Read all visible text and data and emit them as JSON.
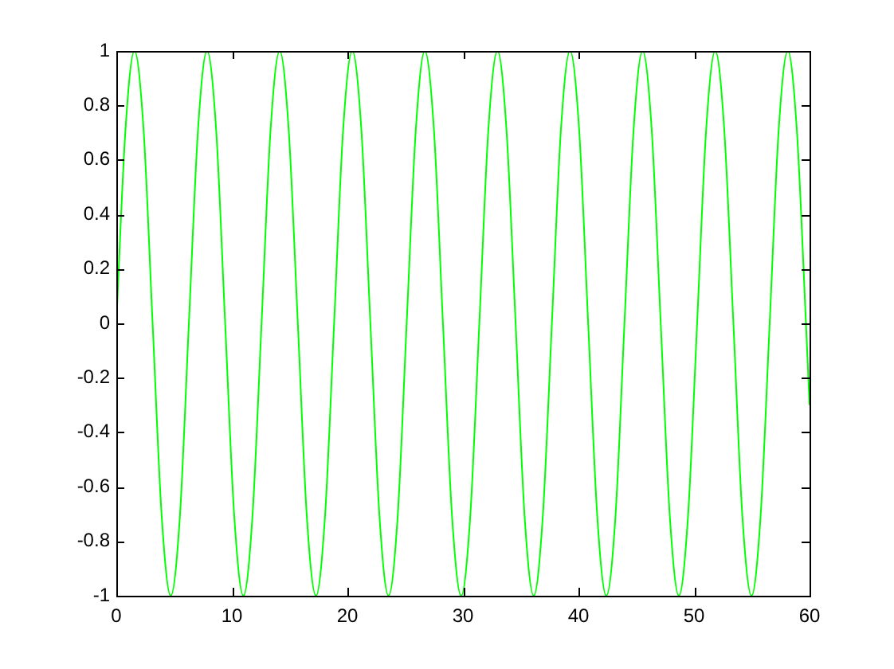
{
  "chart_data": {
    "type": "line",
    "x": [
      0,
      0.79,
      1.57,
      2.36,
      3.14,
      3.93,
      4.71,
      5.5,
      6.28,
      7.07,
      7.85,
      8.64,
      9.42,
      10.21,
      11,
      11.78,
      12.57,
      13.35,
      14.14,
      14.92,
      15.71,
      16.49,
      17.28,
      18.06,
      18.85,
      19.63,
      20.42,
      21.21,
      21.99,
      22.78,
      23.56,
      24.35,
      25.13,
      25.92,
      26.7,
      27.49,
      28.27,
      29.06,
      29.85,
      30.63,
      31.42,
      32.2,
      32.99,
      33.77,
      34.56,
      35.34,
      36.13,
      36.91,
      37.7,
      38.48,
      39.27,
      40.06,
      40.84,
      41.63,
      42.41,
      43.2,
      43.98,
      44.77,
      45.55,
      46.34,
      47.12,
      47.91,
      48.69,
      49.48,
      50.27,
      51.05,
      51.84,
      52.62,
      53.41,
      54.19,
      54.98,
      55.76,
      56.55,
      57.33,
      58.12,
      58.9,
      59.69,
      60
    ],
    "values": [
      0,
      0.71,
      1,
      0.71,
      0,
      -0.71,
      -1,
      -0.71,
      0,
      0.71,
      1,
      0.71,
      0,
      -0.71,
      -1,
      -0.71,
      0,
      0.71,
      1,
      0.71,
      0,
      -0.71,
      -1,
      -0.71,
      0,
      0.71,
      1,
      0.71,
      0,
      -0.71,
      -1,
      -0.71,
      0,
      0.71,
      1,
      0.71,
      0,
      -0.71,
      -1,
      -0.71,
      0,
      0.71,
      1,
      0.71,
      0,
      -0.71,
      -1,
      -0.71,
      0,
      0.71,
      1,
      0.71,
      0,
      -0.71,
      -1,
      -0.71,
      0,
      0.71,
      1,
      0.71,
      0,
      -0.71,
      -1,
      -0.71,
      0,
      0.71,
      1,
      0.71,
      0,
      -0.71,
      -1,
      -0.71,
      0,
      0.71,
      1,
      0.71,
      0,
      -0.3
    ],
    "color": "#00ff00",
    "xlim": [
      0,
      60
    ],
    "xticks": [
      0,
      10,
      20,
      30,
      40,
      50,
      60
    ],
    "ylim": [
      -1,
      1
    ],
    "yticks": [
      -1,
      -0.8,
      -0.6,
      -0.4,
      -0.2,
      0,
      0.2,
      0.4,
      0.6,
      0.8,
      1
    ],
    "grid": false,
    "marker": "none",
    "line_style": "solid"
  }
}
